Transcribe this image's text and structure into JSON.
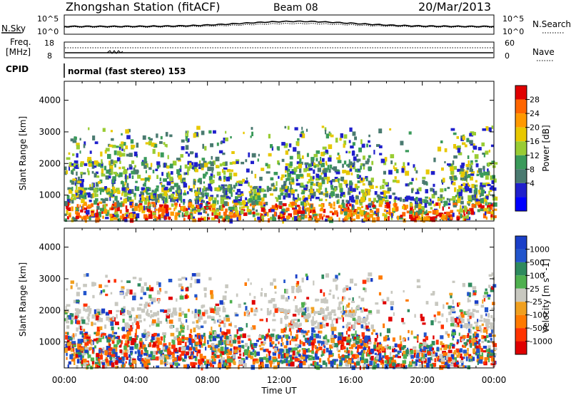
{
  "header": {
    "station": "Zhongshan Station (fitACF)",
    "beam": "Beam 08",
    "date": "20/Mar/2013"
  },
  "top_panels": {
    "nsky_label": "N.Sky",
    "nsearch_label": "N.Search",
    "noise_ticks": [
      "10^5",
      "10^0"
    ],
    "freq_label_1": "Freq.",
    "freq_label_2": "[MHz]",
    "freq_ticks": [
      "18",
      "8"
    ],
    "nave_label": "Nave",
    "nave_ticks": [
      "60",
      "0"
    ],
    "cpid_label": "CPID",
    "cpid_text": "normal (fast stereo) 153"
  },
  "legend_power": {
    "title": "Power [dB]",
    "ticks": [
      "28",
      "24",
      "20",
      "16",
      "12",
      "8",
      "4"
    ],
    "colors": [
      "#e00000",
      "#ff6600",
      "#ff9900",
      "#e8c800",
      "#99cc33",
      "#3a9a5a",
      "#4a7a70",
      "#2020cc",
      "#0000ff"
    ]
  },
  "legend_velocity": {
    "title": "Velocity [m s^-1]",
    "ticks": [
      "1000",
      "500",
      "100",
      "25",
      "-25",
      "-100",
      "-500",
      "-1000"
    ],
    "colors": [
      "#1a3fc8",
      "#2255cc",
      "#2e8a5e",
      "#4fb04f",
      "#c8c8c0",
      "#f0a020",
      "#ff7a00",
      "#ff3300",
      "#e00000"
    ]
  },
  "chart_data": [
    {
      "type": "heatmap",
      "title": "Power",
      "ylabel": "Slant Range [km]",
      "xlabel": "Time UT",
      "x_ticks": [
        "00:00",
        "04:00",
        "08:00",
        "12:00",
        "16:00",
        "20:00",
        "00:00"
      ],
      "y_ticks": [
        1000,
        2000,
        3000,
        4000
      ],
      "xlim": [
        0,
        24
      ],
      "ylim": [
        180,
        4600
      ],
      "colorbar": "Power [dB]",
      "colorbar_range": [
        0,
        30
      ]
    },
    {
      "type": "heatmap",
      "title": "Velocity",
      "ylabel": "Slant Range [km]",
      "xlabel": "Time UT",
      "x_ticks": [
        "00:00",
        "04:00",
        "08:00",
        "12:00",
        "16:00",
        "20:00",
        "00:00"
      ],
      "y_ticks": [
        1000,
        2000,
        3000,
        4000
      ],
      "xlim": [
        0,
        24
      ],
      "ylim": [
        180,
        4600
      ],
      "colorbar": "Velocity [m s^-1]",
      "colorbar_range": [
        -1000,
        1000
      ]
    }
  ],
  "axes": {
    "xlabel": "Time UT",
    "ylabel": "Slant Range [km]"
  }
}
